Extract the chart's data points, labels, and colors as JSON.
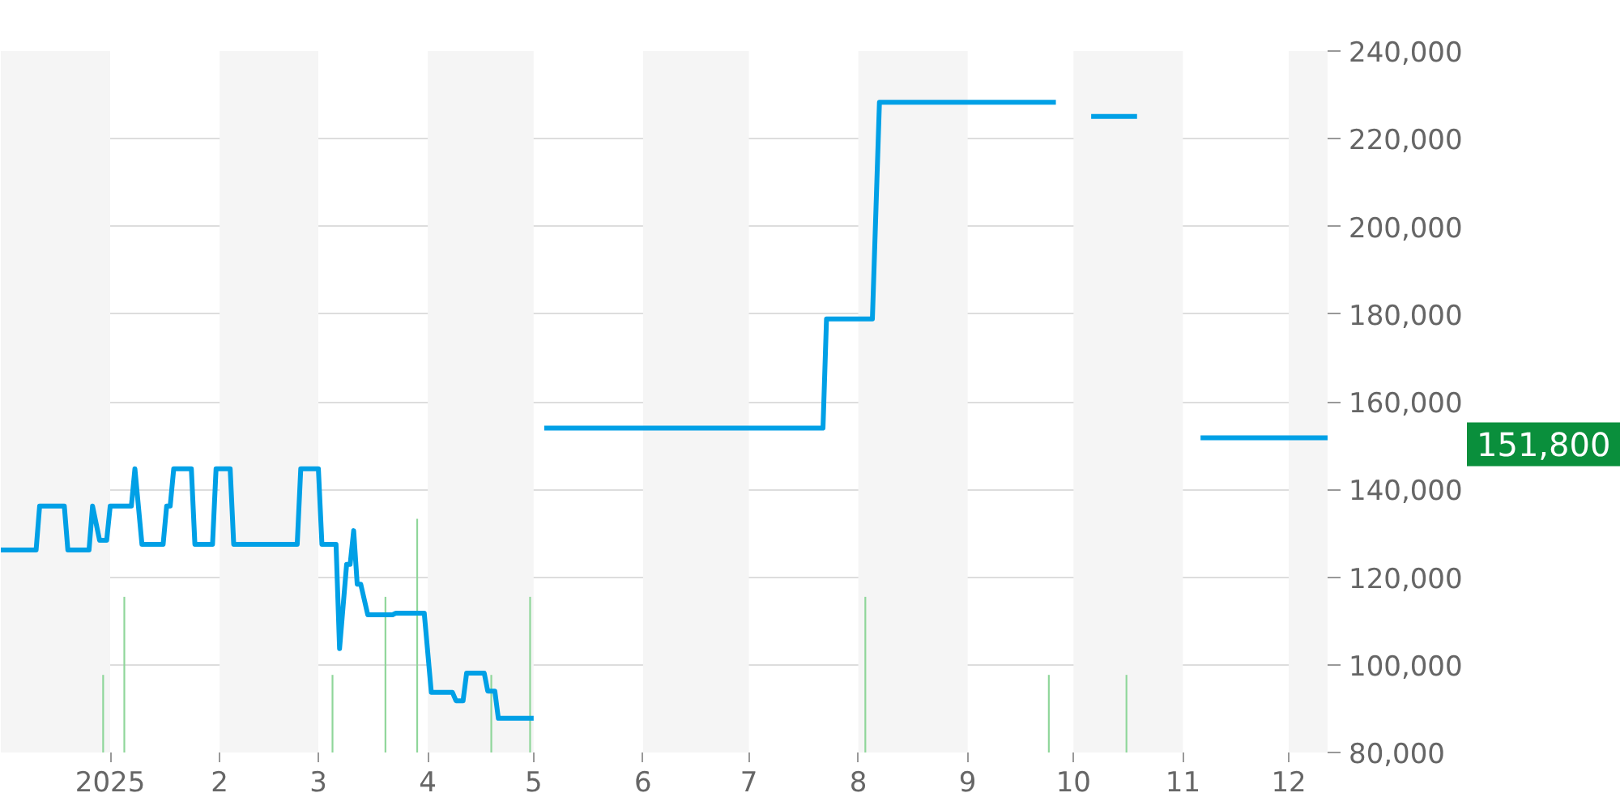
{
  "chart_data": {
    "type": "line",
    "xlim": [
      "2024-12-01",
      "2025-12-12"
    ],
    "ylim": [
      80000,
      240000
    ],
    "xticks": [
      {
        "value": "2025-01-01",
        "label": "2025"
      },
      {
        "value": "2025-02-01",
        "label": "2"
      },
      {
        "value": "2025-03-01",
        "label": "3"
      },
      {
        "value": "2025-04-01",
        "label": "4"
      },
      {
        "value": "2025-05-01",
        "label": "5"
      },
      {
        "value": "2025-06-01",
        "label": "6"
      },
      {
        "value": "2025-07-01",
        "label": "7"
      },
      {
        "value": "2025-08-01",
        "label": "8"
      },
      {
        "value": "2025-09-01",
        "label": "9"
      },
      {
        "value": "2025-10-01",
        "label": "10"
      },
      {
        "value": "2025-11-01",
        "label": "11"
      },
      {
        "value": "2025-12-01",
        "label": "12"
      }
    ],
    "yticks": [
      {
        "value": 80000,
        "label": "80,000"
      },
      {
        "value": 100000,
        "label": "100,000"
      },
      {
        "value": 120000,
        "label": "120,000"
      },
      {
        "value": 140000,
        "label": "140,000"
      },
      {
        "value": 160000,
        "label": "160,000"
      },
      {
        "value": 180000,
        "label": "180,000"
      },
      {
        "value": 200000,
        "label": "200,000"
      },
      {
        "value": 220000,
        "label": "220,000"
      },
      {
        "value": 240000,
        "label": "240,000"
      }
    ],
    "grid": "y",
    "marker": "none",
    "line_style": "solid",
    "bands": [
      {
        "axis": "x",
        "from": "2024-12-01",
        "to": "2025-01-01",
        "color": "#f5f5f5"
      },
      {
        "axis": "x",
        "from": "2025-02-01",
        "to": "2025-03-01",
        "color": "#f5f5f5"
      },
      {
        "axis": "x",
        "from": "2025-04-01",
        "to": "2025-05-01",
        "color": "#f5f5f5"
      },
      {
        "axis": "x",
        "from": "2025-06-01",
        "to": "2025-07-01",
        "color": "#f5f5f5"
      },
      {
        "axis": "x",
        "from": "2025-08-01",
        "to": "2025-09-01",
        "color": "#f5f5f5"
      },
      {
        "axis": "x",
        "from": "2025-10-01",
        "to": "2025-11-01",
        "color": "#f5f5f5"
      },
      {
        "axis": "x",
        "from": "2025-12-01",
        "to": "2025-12-12",
        "color": "#f5f5f5"
      }
    ],
    "series": [
      {
        "type": "bar",
        "color": "#8fd69a",
        "x": [
          "2024-12-30",
          "2025-01-05",
          "2025-03-05",
          "2025-03-20",
          "2025-03-29",
          "2025-04-19",
          "2025-04-30",
          "2025-08-03",
          "2025-09-24",
          "2025-10-16"
        ],
        "values": [
          97700,
          115500,
          97700,
          115500,
          133300,
          97700,
          115500,
          115500,
          97700,
          97700
        ]
      },
      {
        "color": "#00a0e6",
        "x": [
          "2024-12-01",
          "2024-12-11",
          "2024-12-12",
          "2024-12-19",
          "2024-12-20",
          "2024-12-26",
          "2024-12-27",
          "2024-12-29",
          "2024-12-31",
          "2025-01-01",
          "2025-01-07",
          "2025-01-08",
          "2025-01-10",
          "2025-01-16",
          "2025-01-17",
          "2025-01-18",
          "2025-01-19",
          "2025-01-24",
          "2025-01-25",
          "2025-01-30",
          "2025-01-31",
          "2025-02-04",
          "2025-02-05",
          "2025-02-23",
          "2025-02-24",
          "2025-03-01",
          "2025-03-02",
          "2025-03-06",
          "2025-03-07",
          "2025-03-09",
          "2025-03-10",
          "2025-03-11",
          "2025-03-12",
          "2025-03-13",
          "2025-03-15",
          "2025-03-22",
          "2025-03-23",
          "2025-03-31",
          "2025-04-02",
          "2025-04-08",
          "2025-04-09",
          "2025-04-11",
          "2025-04-12",
          "2025-04-17",
          "2025-04-18",
          "2025-04-20",
          "2025-04-21",
          "2025-05-01",
          "2025-05-02",
          "2025-05-04",
          "2025-07-22",
          "2025-07-23",
          "2025-08-05",
          "2025-08-07",
          "2025-09-26",
          "2025-10-01",
          "2025-10-06",
          "2025-10-19",
          "2025-10-28",
          "2025-11-06",
          "2025-12-12"
        ],
        "values": [
          126200,
          126200,
          136200,
          136200,
          126200,
          126200,
          136200,
          128400,
          128400,
          136200,
          136200,
          144700,
          127500,
          127500,
          136200,
          136200,
          144700,
          144700,
          127500,
          127500,
          144700,
          144700,
          127500,
          127500,
          144700,
          144700,
          127500,
          127500,
          103700,
          122900,
          122900,
          130600,
          118400,
          118400,
          111400,
          111400,
          111800,
          111800,
          93700,
          93700,
          91800,
          91800,
          98100,
          98100,
          94000,
          94000,
          87800,
          87800,
          null,
          154000,
          154000,
          178900,
          178900,
          228300,
          228300,
          null,
          225100,
          225100,
          null,
          151800,
          151800
        ]
      }
    ],
    "annotations": [
      "151,800"
    ]
  }
}
